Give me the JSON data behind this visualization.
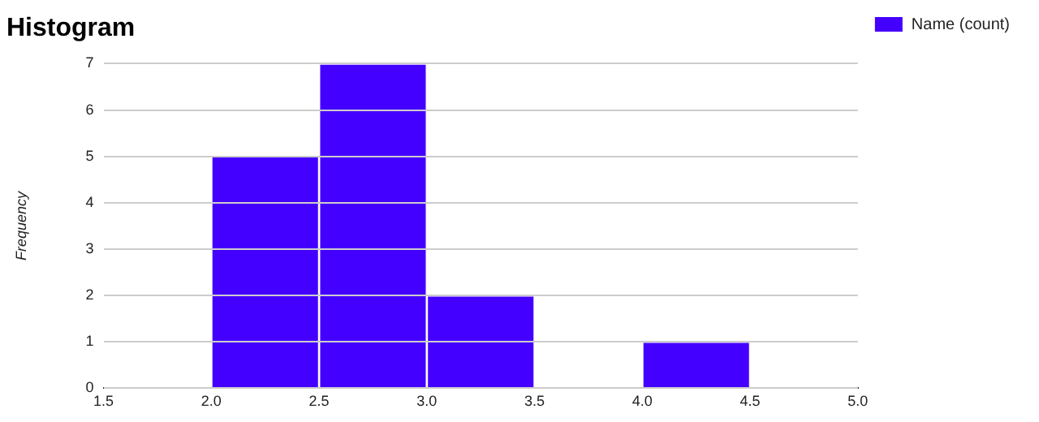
{
  "chart_data": {
    "type": "histogram",
    "title": "Histogram",
    "ylabel": "Frequency",
    "bins": [
      1.5,
      2,
      2.5,
      3,
      3.5,
      4,
      4.5,
      5
    ],
    "series": [
      {
        "name": "Name (count)",
        "color": "#4400ff",
        "values": [
          0,
          5,
          7,
          2,
          0,
          1,
          0
        ]
      }
    ],
    "xlim": [
      1.5,
      5
    ],
    "xticks": [
      1.5,
      {
        "value": 2,
        "label": "2.0"
      },
      2.5,
      {
        "value": 3,
        "label": "3.0"
      },
      3.5,
      {
        "value": 4,
        "label": "4.0"
      },
      4.5,
      {
        "value": 5,
        "label": "5.0"
      }
    ],
    "ylim": [
      0,
      7
    ],
    "yticks": [
      0,
      1,
      2,
      3,
      4,
      5,
      6,
      7
    ],
    "grid": "y",
    "legend": "top right"
  }
}
